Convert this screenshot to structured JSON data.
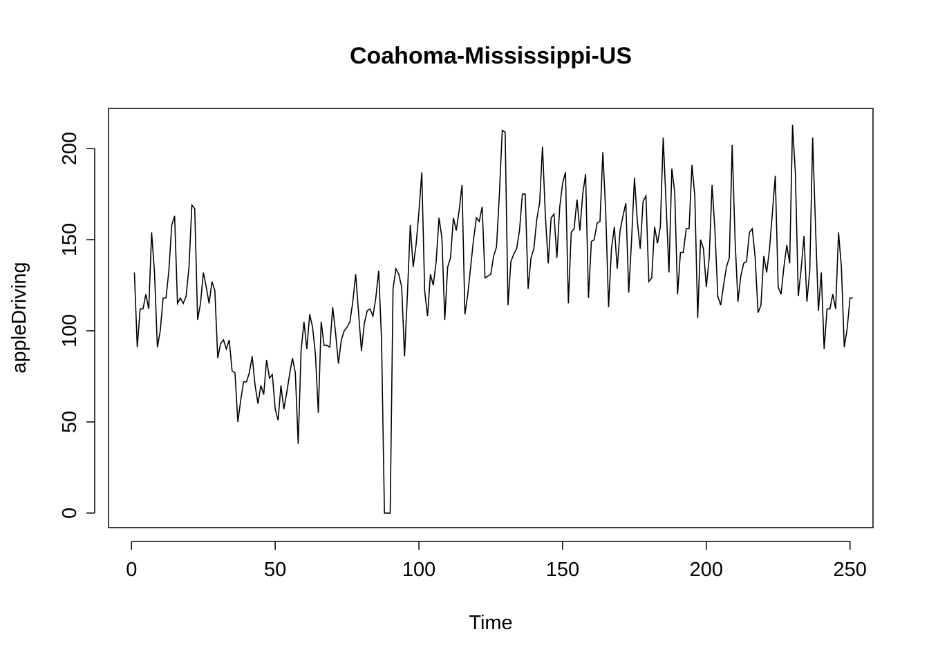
{
  "chart_data": {
    "type": "line",
    "title": "Coahoma-Mississippi-US",
    "xlabel": "Time",
    "ylabel": "appleDriving",
    "xlim": [
      -8,
      258
    ],
    "ylim": [
      -8,
      222
    ],
    "x_ticks": [
      0,
      50,
      100,
      150,
      200,
      250
    ],
    "y_ticks": [
      0,
      50,
      100,
      150,
      200
    ],
    "grid": false,
    "legend": "none",
    "color": "#000000",
    "series": [
      {
        "x_start": 1,
        "values": [
          132,
          91,
          112,
          112,
          120,
          112,
          154,
          132,
          91,
          100,
          118,
          118,
          133,
          158,
          163,
          115,
          118,
          115,
          119,
          135,
          169,
          167,
          106,
          115,
          132,
          124,
          115,
          127,
          122,
          85,
          93,
          95,
          90,
          95,
          78,
          77,
          50,
          62,
          72,
          72,
          77,
          86,
          70,
          60,
          70,
          65,
          84,
          74,
          76,
          57,
          51,
          70,
          57,
          66,
          76,
          85,
          77,
          38,
          89,
          105,
          90,
          109,
          102,
          87,
          55,
          105,
          92,
          92,
          91,
          113,
          99,
          82,
          95,
          100,
          102,
          105,
          116,
          131,
          110,
          89,
          104,
          111,
          112,
          108,
          118,
          133,
          95,
          0,
          0,
          0,
          123,
          134,
          131,
          124,
          86,
          120,
          158,
          135,
          147,
          165,
          187,
          122,
          108,
          131,
          125,
          138,
          162,
          151,
          106,
          135,
          140,
          162,
          155,
          166,
          180,
          109,
          120,
          135,
          150,
          162,
          160,
          168,
          129,
          130,
          131,
          141,
          146,
          175,
          210,
          209,
          114,
          138,
          142,
          145,
          155,
          175,
          175,
          123,
          140,
          145,
          161,
          170,
          201,
          163,
          137,
          162,
          164,
          140,
          168,
          181,
          187,
          115,
          154,
          156,
          172,
          155,
          175,
          186,
          118,
          149,
          150,
          159,
          160,
          198,
          165,
          113,
          145,
          157,
          134,
          155,
          163,
          170,
          121,
          150,
          184,
          160,
          145,
          171,
          174,
          127,
          129,
          157,
          148,
          157,
          206,
          170,
          132,
          189,
          176,
          120,
          143,
          143,
          156,
          156,
          191,
          174,
          107,
          150,
          145,
          124,
          140,
          180,
          155,
          119,
          114,
          125,
          135,
          140,
          202,
          150,
          116,
          130,
          137,
          138,
          154,
          156,
          140,
          110,
          114,
          141,
          132,
          145,
          165,
          185,
          124,
          120,
          135,
          147,
          137,
          213,
          186,
          119,
          134,
          152,
          116,
          133,
          206,
          157,
          111,
          132,
          90,
          112,
          112,
          120,
          112,
          154,
          135,
          91,
          101,
          118,
          118
        ]
      }
    ]
  }
}
